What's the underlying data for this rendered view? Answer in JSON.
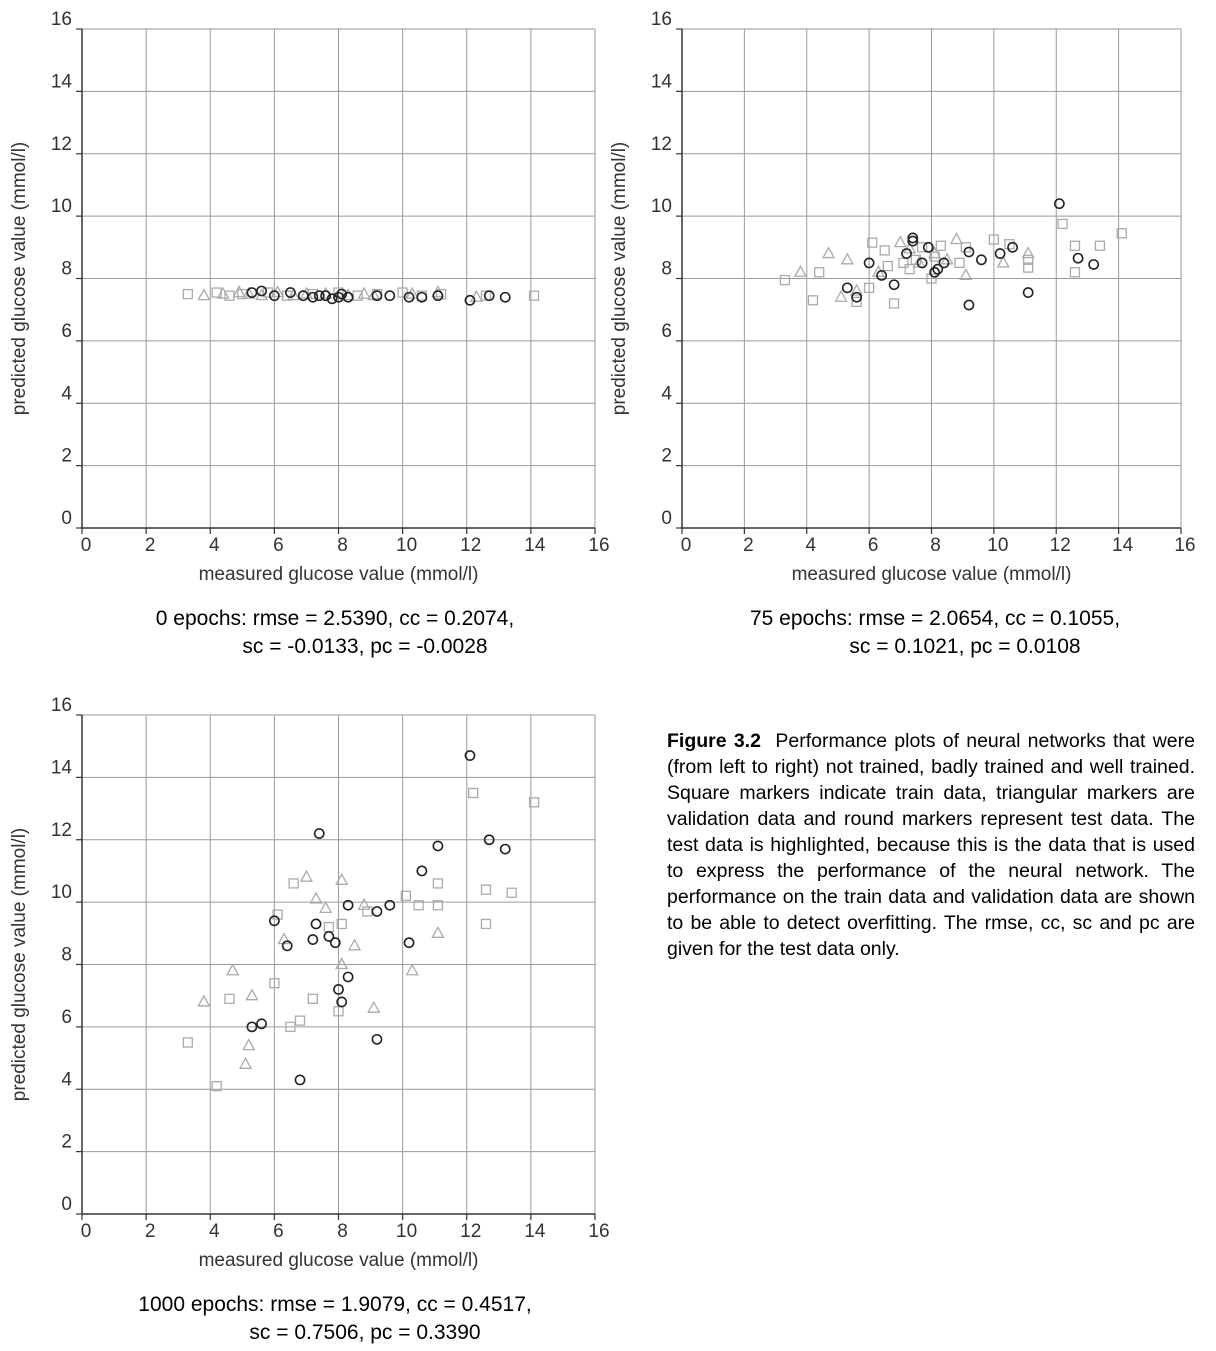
{
  "chart_data": [
    {
      "type": "scatter",
      "xlabel": "measured glucose value (mmol/l)",
      "ylabel": "predicted glucose value (mmol/l)",
      "xlim": [
        0,
        16
      ],
      "ylim": [
        0,
        16
      ],
      "xticks": [
        "0",
        "2",
        "4",
        "6",
        "8",
        "10",
        "12",
        "14",
        "16"
      ],
      "yticks": [
        "0",
        "2",
        "4",
        "6",
        "8",
        "10",
        "12",
        "14",
        "16"
      ],
      "grid": true,
      "caption_line1": "0 epochs: rmse = 2.5390, cc = 0.2074,",
      "caption_line2": "sc = -0.0133, pc = -0.0028",
      "series": [
        {
          "marker": "square",
          "color": "#aaaaaa",
          "points": [
            [
              3.3,
              7.5
            ],
            [
              4.2,
              7.55
            ],
            [
              4.6,
              7.45
            ],
            [
              5.0,
              7.5
            ],
            [
              5.8,
              7.55
            ],
            [
              6.4,
              7.45
            ],
            [
              7.2,
              7.5
            ],
            [
              8.0,
              7.55
            ],
            [
              8.6,
              7.45
            ],
            [
              9.2,
              7.5
            ],
            [
              10.0,
              7.55
            ],
            [
              10.6,
              7.45
            ],
            [
              11.2,
              7.5
            ],
            [
              12.6,
              7.45
            ],
            [
              14.1,
              7.45
            ]
          ]
        },
        {
          "marker": "triangle",
          "color": "#aaaaaa",
          "points": [
            [
              3.8,
              7.45
            ],
            [
              4.4,
              7.5
            ],
            [
              4.9,
              7.55
            ],
            [
              5.2,
              7.5
            ],
            [
              5.6,
              7.45
            ],
            [
              6.1,
              7.55
            ],
            [
              6.6,
              7.45
            ],
            [
              7.0,
              7.5
            ],
            [
              7.6,
              7.5
            ],
            [
              8.3,
              7.45
            ],
            [
              8.8,
              7.5
            ],
            [
              9.1,
              7.45
            ],
            [
              10.3,
              7.5
            ],
            [
              11.1,
              7.55
            ],
            [
              12.3,
              7.4
            ]
          ]
        },
        {
          "marker": "circle",
          "color": "#222222",
          "points": [
            [
              5.3,
              7.55
            ],
            [
              5.6,
              7.6
            ],
            [
              6.0,
              7.45
            ],
            [
              6.5,
              7.55
            ],
            [
              6.9,
              7.45
            ],
            [
              7.2,
              7.4
            ],
            [
              7.4,
              7.45
            ],
            [
              7.6,
              7.45
            ],
            [
              7.8,
              7.35
            ],
            [
              8.0,
              7.4
            ],
            [
              8.1,
              7.5
            ],
            [
              8.3,
              7.4
            ],
            [
              9.2,
              7.45
            ],
            [
              9.6,
              7.45
            ],
            [
              10.2,
              7.4
            ],
            [
              10.6,
              7.4
            ],
            [
              11.1,
              7.45
            ],
            [
              12.1,
              7.3
            ],
            [
              12.7,
              7.45
            ],
            [
              13.2,
              7.4
            ]
          ]
        }
      ]
    },
    {
      "type": "scatter",
      "xlabel": "measured glucose value (mmol/l)",
      "ylabel": "predicted glucose value (mmol/l)",
      "xlim": [
        0,
        16
      ],
      "ylim": [
        0,
        16
      ],
      "xticks": [
        "0",
        "2",
        "4",
        "6",
        "8",
        "10",
        "12",
        "14",
        "16"
      ],
      "yticks": [
        "0",
        "2",
        "4",
        "6",
        "8",
        "10",
        "12",
        "14",
        "16"
      ],
      "grid": true,
      "caption_line1": "75 epochs: rmse = 2.0654, cc = 0.1055,",
      "caption_line2": "sc = 0.1021, pc = 0.0108",
      "series": [
        {
          "marker": "square",
          "color": "#aaaaaa",
          "points": [
            [
              3.3,
              7.95
            ],
            [
              4.2,
              7.3
            ],
            [
              4.4,
              8.2
            ],
            [
              5.6,
              7.25
            ],
            [
              6.0,
              7.7
            ],
            [
              6.1,
              9.15
            ],
            [
              6.5,
              8.9
            ],
            [
              6.6,
              8.4
            ],
            [
              6.8,
              7.2
            ],
            [
              7.1,
              8.5
            ],
            [
              7.3,
              8.3
            ],
            [
              7.5,
              8.6
            ],
            [
              7.7,
              9.0
            ],
            [
              8.0,
              8.0
            ],
            [
              8.1,
              8.7
            ],
            [
              8.3,
              9.05
            ],
            [
              8.9,
              8.5
            ],
            [
              9.1,
              9.0
            ],
            [
              10.0,
              9.25
            ],
            [
              10.5,
              9.1
            ],
            [
              11.1,
              8.6
            ],
            [
              11.1,
              8.35
            ],
            [
              12.2,
              9.75
            ],
            [
              12.6,
              8.2
            ],
            [
              12.6,
              9.05
            ],
            [
              13.4,
              9.05
            ],
            [
              14.1,
              9.45
            ]
          ]
        },
        {
          "marker": "triangle",
          "color": "#aaaaaa",
          "points": [
            [
              3.8,
              8.2
            ],
            [
              4.7,
              8.8
            ],
            [
              5.1,
              7.4
            ],
            [
              5.3,
              8.6
            ],
            [
              5.6,
              7.6
            ],
            [
              6.3,
              8.2
            ],
            [
              7.0,
              9.15
            ],
            [
              7.3,
              8.95
            ],
            [
              7.6,
              8.5
            ],
            [
              8.1,
              8.8
            ],
            [
              8.5,
              8.6
            ],
            [
              8.8,
              9.25
            ],
            [
              9.1,
              8.1
            ],
            [
              10.3,
              8.5
            ],
            [
              11.1,
              8.8
            ]
          ]
        },
        {
          "marker": "circle",
          "color": "#222222",
          "points": [
            [
              5.3,
              7.7
            ],
            [
              5.6,
              7.4
            ],
            [
              6.0,
              8.5
            ],
            [
              6.4,
              8.1
            ],
            [
              6.8,
              7.8
            ],
            [
              7.2,
              8.8
            ],
            [
              7.4,
              9.3
            ],
            [
              7.4,
              9.2
            ],
            [
              7.7,
              8.5
            ],
            [
              7.9,
              9.0
            ],
            [
              8.1,
              8.2
            ],
            [
              8.2,
              8.3
            ],
            [
              8.4,
              8.5
            ],
            [
              9.2,
              7.15
            ],
            [
              9.2,
              8.85
            ],
            [
              9.6,
              8.6
            ],
            [
              10.2,
              8.8
            ],
            [
              10.6,
              9.0
            ],
            [
              11.1,
              7.55
            ],
            [
              12.1,
              10.4
            ],
            [
              12.7,
              8.65
            ],
            [
              13.2,
              8.45
            ]
          ]
        }
      ]
    },
    {
      "type": "scatter",
      "xlabel": "measured glucose value (mmol/l)",
      "ylabel": "predicted glucose value (mmol/l)",
      "xlim": [
        0,
        16
      ],
      "ylim": [
        0,
        16
      ],
      "xticks": [
        "0",
        "2",
        "4",
        "6",
        "8",
        "10",
        "12",
        "14",
        "16"
      ],
      "yticks": [
        "0",
        "2",
        "4",
        "6",
        "8",
        "10",
        "12",
        "14",
        "16"
      ],
      "grid": true,
      "caption_line1": "1000 epochs: rmse = 1.9079, cc = 0.4517,",
      "caption_line2": "sc = 0.7506, pc = 0.3390",
      "series": [
        {
          "marker": "square",
          "color": "#aaaaaa",
          "points": [
            [
              3.3,
              5.5
            ],
            [
              4.2,
              4.1
            ],
            [
              4.6,
              6.9
            ],
            [
              6.0,
              7.4
            ],
            [
              6.1,
              9.6
            ],
            [
              6.5,
              6.0
            ],
            [
              6.6,
              10.6
            ],
            [
              6.8,
              6.2
            ],
            [
              7.2,
              6.9
            ],
            [
              7.7,
              9.2
            ],
            [
              8.0,
              6.5
            ],
            [
              8.1,
              9.3
            ],
            [
              8.9,
              9.7
            ],
            [
              10.1,
              10.2
            ],
            [
              10.5,
              9.9
            ],
            [
              11.1,
              10.6
            ],
            [
              11.1,
              9.9
            ],
            [
              12.2,
              13.5
            ],
            [
              12.6,
              9.3
            ],
            [
              12.6,
              10.4
            ],
            [
              13.4,
              10.3
            ],
            [
              14.1,
              13.2
            ]
          ]
        },
        {
          "marker": "triangle",
          "color": "#aaaaaa",
          "points": [
            [
              3.8,
              6.8
            ],
            [
              4.7,
              7.8
            ],
            [
              5.1,
              4.8
            ],
            [
              5.2,
              5.4
            ],
            [
              5.3,
              7.0
            ],
            [
              6.3,
              8.8
            ],
            [
              7.0,
              10.8
            ],
            [
              7.3,
              10.1
            ],
            [
              7.6,
              9.8
            ],
            [
              8.1,
              10.7
            ],
            [
              8.1,
              8.0
            ],
            [
              8.5,
              8.6
            ],
            [
              8.8,
              9.9
            ],
            [
              9.1,
              6.6
            ],
            [
              10.3,
              7.8
            ],
            [
              11.1,
              9.0
            ]
          ]
        },
        {
          "marker": "circle",
          "color": "#222222",
          "points": [
            [
              5.3,
              6.0
            ],
            [
              5.6,
              6.1
            ],
            [
              6.0,
              9.4
            ],
            [
              6.4,
              8.6
            ],
            [
              6.8,
              4.3
            ],
            [
              7.2,
              8.8
            ],
            [
              7.3,
              9.3
            ],
            [
              7.4,
              12.2
            ],
            [
              7.7,
              8.9
            ],
            [
              7.9,
              8.7
            ],
            [
              8.0,
              7.2
            ],
            [
              8.1,
              6.8
            ],
            [
              8.3,
              7.6
            ],
            [
              8.3,
              9.9
            ],
            [
              9.2,
              9.7
            ],
            [
              9.2,
              5.6
            ],
            [
              9.6,
              9.9
            ],
            [
              10.2,
              8.7
            ],
            [
              10.6,
              11.0
            ],
            [
              11.1,
              11.8
            ],
            [
              12.1,
              14.7
            ],
            [
              12.7,
              12.0
            ],
            [
              13.2,
              11.7
            ]
          ]
        }
      ]
    }
  ],
  "figure_caption": {
    "label": "Figure 3.2",
    "text": "Performance plots of neural networks that were (from left to right) not trained, badly trained and well trained. Square markers indicate train data, triangular markers are validation data and round markers represent test data. The test data is highlighted, because this is the data that is used to express the performance of the neural network. The performance on the train data and validation data are shown to be able to detect overfitting. The rmse, cc, sc and pc are given for the test data only."
  }
}
